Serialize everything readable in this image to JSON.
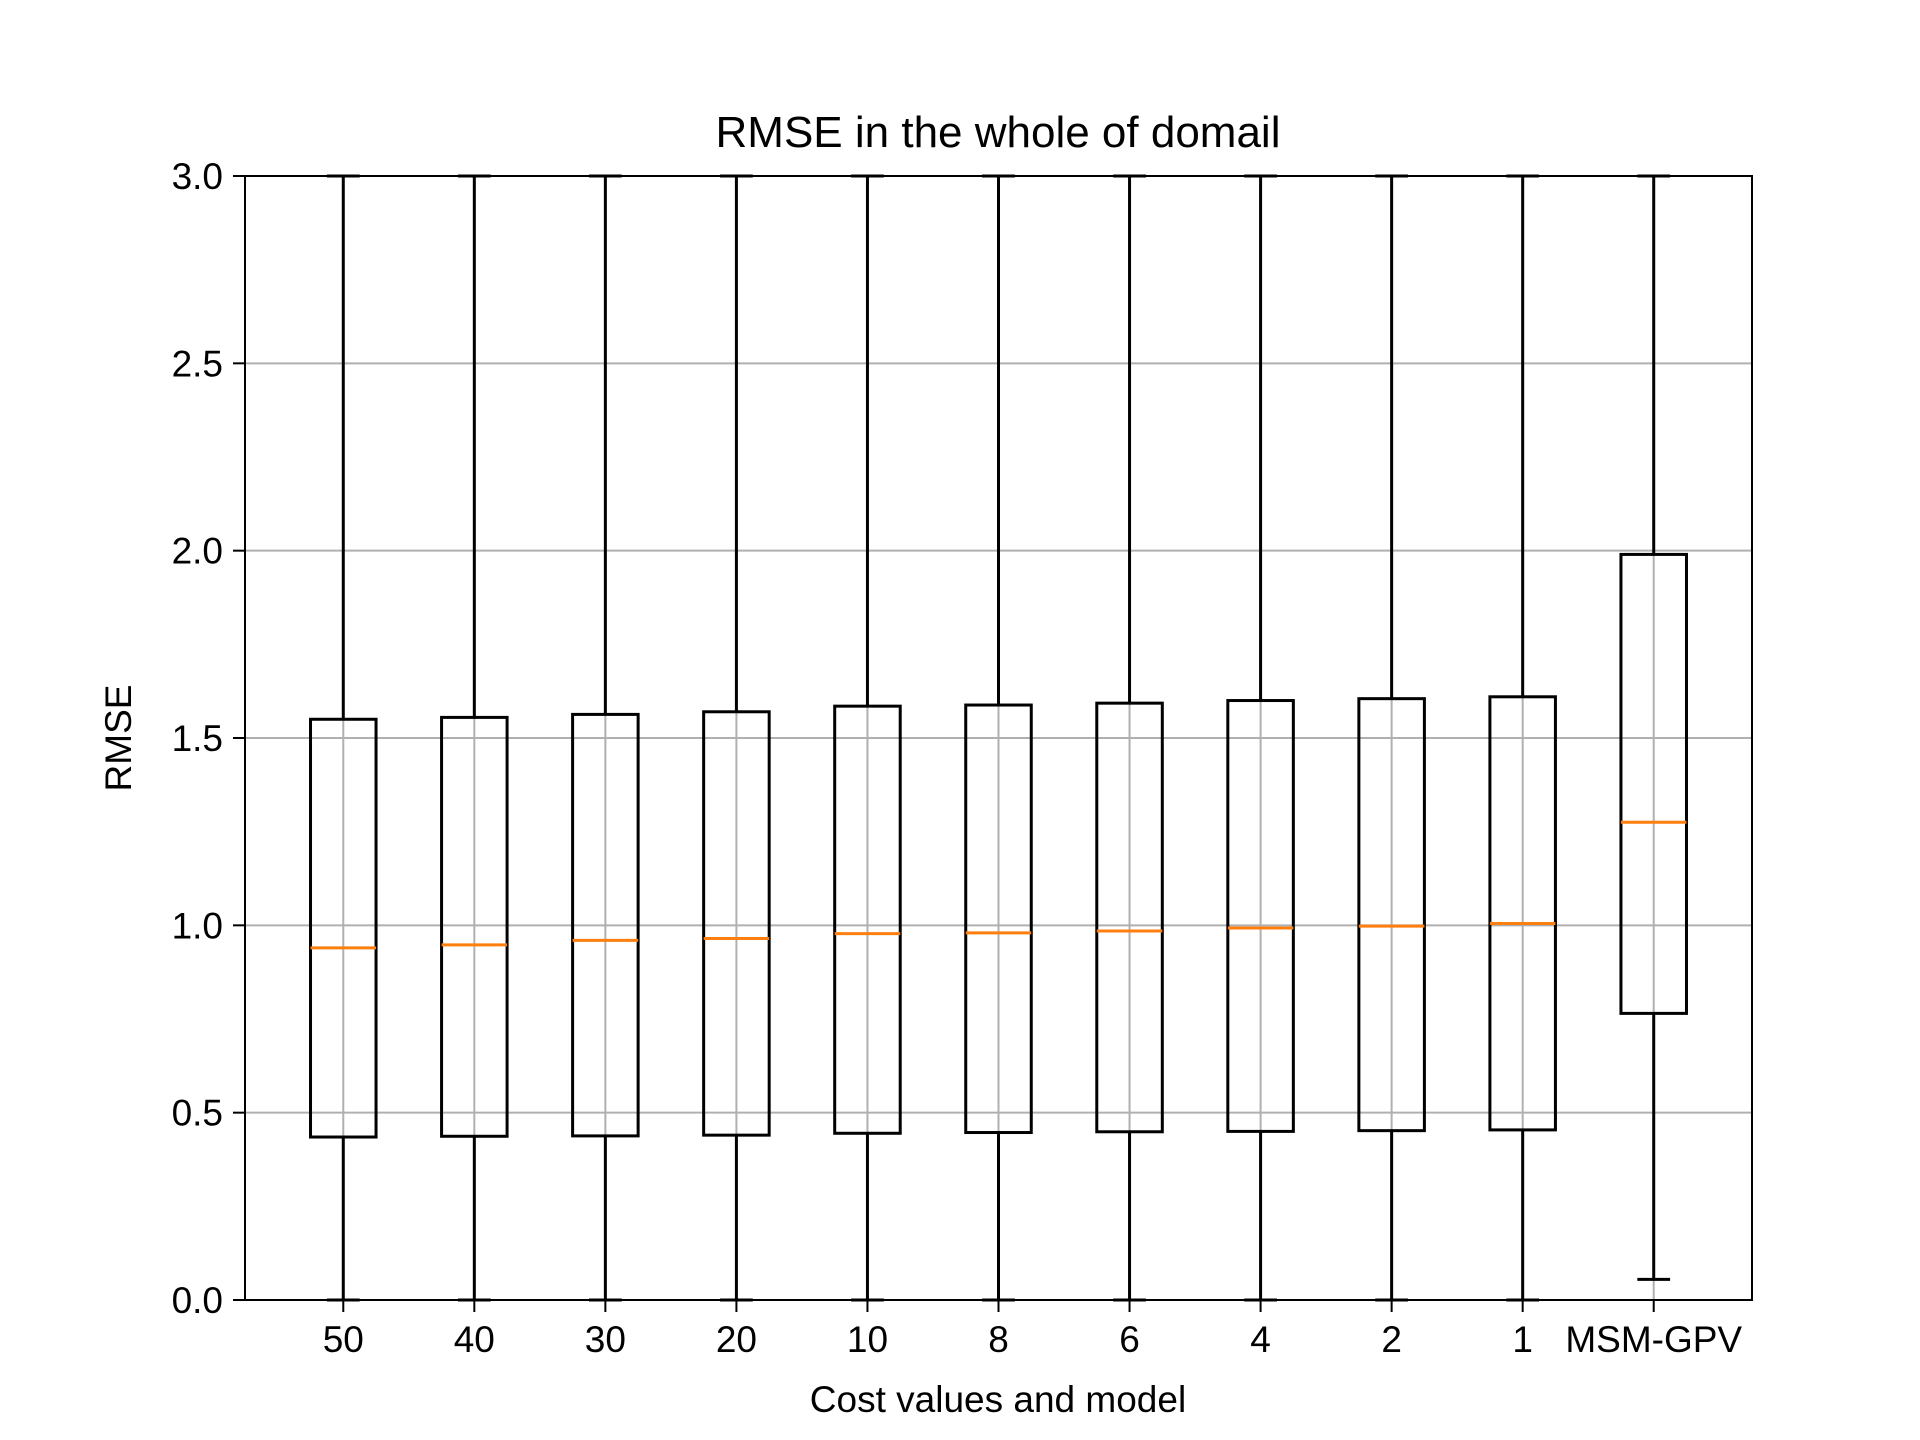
{
  "chart_data": {
    "type": "box",
    "title": "RMSE in the whole of domail",
    "xlabel": "Cost values and model",
    "ylabel": "RMSE",
    "ylim": [
      0,
      3.0
    ],
    "yticks": [
      "0.0",
      "0.5",
      "1.0",
      "1.5",
      "2.0",
      "2.5",
      "3.0"
    ],
    "grid": true,
    "colors": {
      "box": "#000000",
      "median": "#ff7f0e",
      "grid": "#b0b0b0"
    },
    "categories": [
      "50",
      "40",
      "30",
      "20",
      "10",
      "8",
      "6",
      "4",
      "2",
      "1",
      "MSM-GPV"
    ],
    "boxes": [
      {
        "label": "50",
        "whislo": 0.0,
        "q1": 0.435,
        "med": 0.94,
        "q3": 1.55,
        "whishi": 3.0
      },
      {
        "label": "40",
        "whislo": 0.0,
        "q1": 0.437,
        "med": 0.948,
        "q3": 1.555,
        "whishi": 3.0
      },
      {
        "label": "30",
        "whislo": 0.0,
        "q1": 0.438,
        "med": 0.96,
        "q3": 1.563,
        "whishi": 3.0
      },
      {
        "label": "20",
        "whislo": 0.0,
        "q1": 0.44,
        "med": 0.965,
        "q3": 1.57,
        "whishi": 3.0
      },
      {
        "label": "10",
        "whislo": 0.0,
        "q1": 0.445,
        "med": 0.978,
        "q3": 1.585,
        "whishi": 3.0
      },
      {
        "label": "8",
        "whislo": 0.0,
        "q1": 0.447,
        "med": 0.98,
        "q3": 1.588,
        "whishi": 3.0
      },
      {
        "label": "6",
        "whislo": 0.0,
        "q1": 0.449,
        "med": 0.985,
        "q3": 1.593,
        "whishi": 3.0
      },
      {
        "label": "4",
        "whislo": 0.0,
        "q1": 0.45,
        "med": 0.993,
        "q3": 1.6,
        "whishi": 3.0
      },
      {
        "label": "2",
        "whislo": 0.0,
        "q1": 0.452,
        "med": 0.998,
        "q3": 1.605,
        "whishi": 3.0
      },
      {
        "label": "1",
        "whislo": 0.0,
        "q1": 0.454,
        "med": 1.005,
        "q3": 1.61,
        "whishi": 3.0
      },
      {
        "label": "MSM-GPV",
        "whislo": 0.055,
        "q1": 0.765,
        "med": 1.275,
        "q3": 1.99,
        "whishi": 3.0
      }
    ]
  }
}
